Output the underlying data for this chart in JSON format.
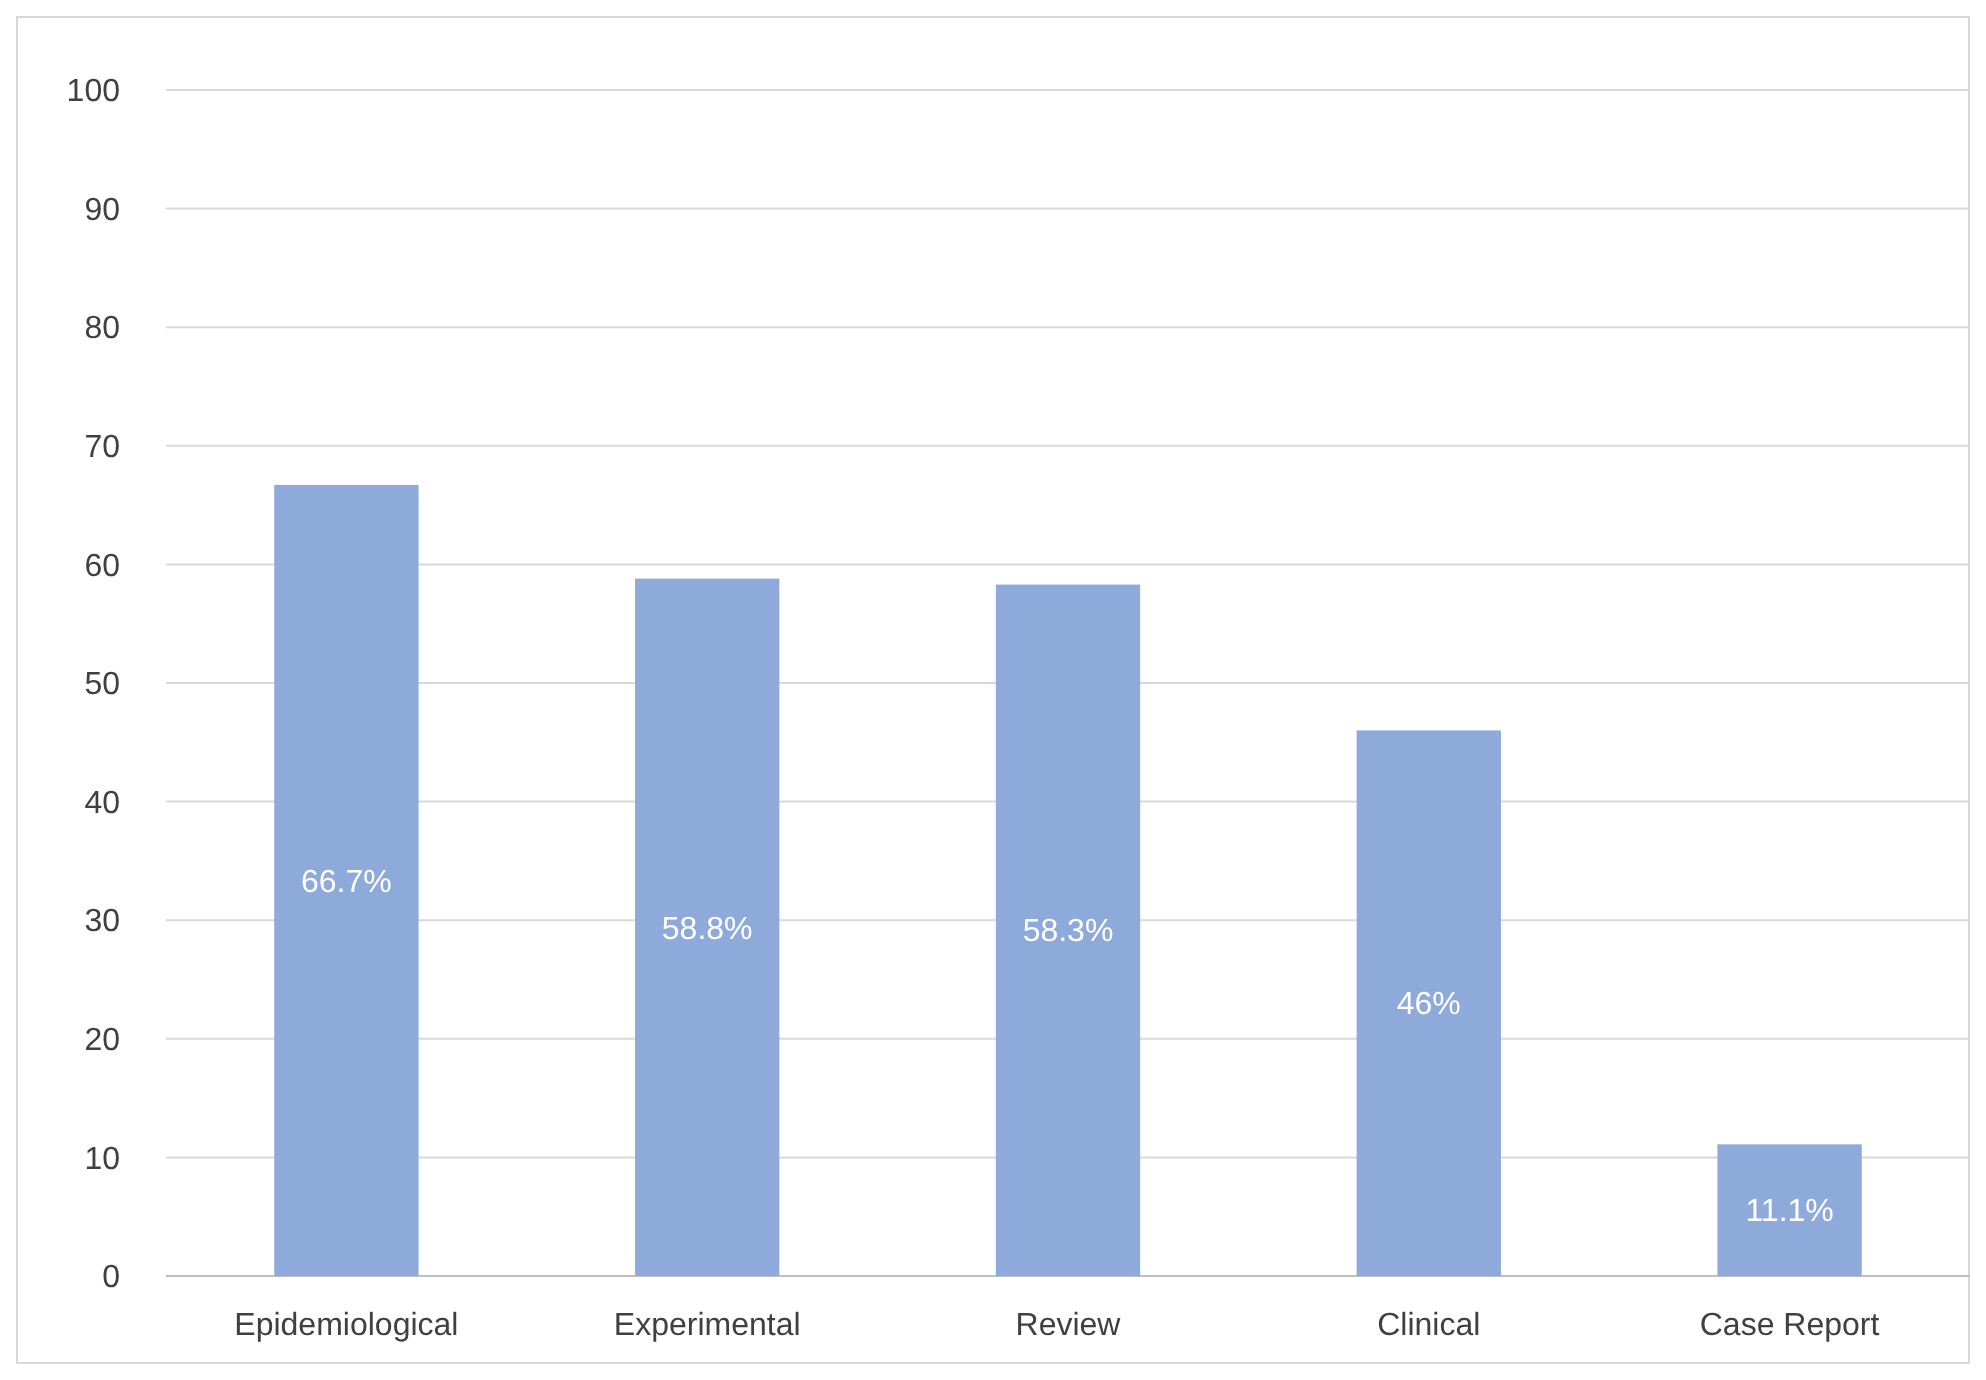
{
  "chart_data": {
    "type": "bar",
    "categories": [
      "Epidemiological",
      "Experimental",
      "Review",
      "Clinical",
      "Case Report"
    ],
    "values": [
      66.7,
      58.8,
      58.3,
      46,
      11.1
    ],
    "value_labels": [
      "66.7%",
      "58.8%",
      "58.3%",
      "46%",
      "11.1%"
    ],
    "color": "#8eaadb",
    "ylim": [
      0,
      100
    ],
    "yticks": [
      0,
      10,
      20,
      30,
      40,
      50,
      60,
      70,
      80,
      90,
      100
    ],
    "grid": "y"
  }
}
